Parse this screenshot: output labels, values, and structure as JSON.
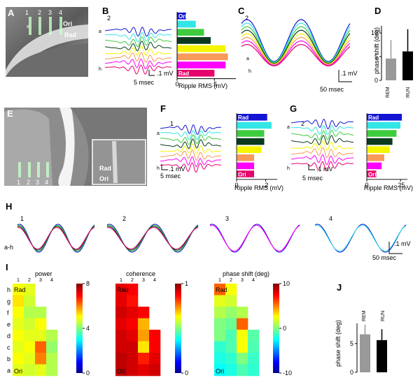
{
  "panel_labels": [
    "A",
    "B",
    "C",
    "D",
    "E",
    "F",
    "G",
    "H",
    "I",
    "J"
  ],
  "colors": {
    "a": "#e5006b",
    "b": "#ff00ff",
    "c": "#f79a5a",
    "d": "#f5f500",
    "e": "#0a3a1e",
    "f": "#3ecc3e",
    "g": "#33e5e5",
    "h": "#1414d4"
  },
  "layers": [
    "a",
    "b",
    "c",
    "d",
    "e",
    "f",
    "g",
    "h"
  ],
  "panel_A": {
    "sites": [
      "1",
      "2",
      "3",
      "4"
    ],
    "label_a": "a",
    "label_h": "h",
    "ori": "Ori",
    "rad": "Rad"
  },
  "panel_B": {
    "site": "2",
    "scale_v": ".1 mV",
    "scale_t": "5 msec",
    "label_a": "a",
    "label_h": "h",
    "top_label": "Ori",
    "bottom_label": "Rad",
    "xlabel": "Ripple RMS (mV)",
    "ticks": [
      "0",
      ".5"
    ]
  },
  "panel_C": {
    "site": "2",
    "scale_v": ".1 mV",
    "scale_t": "50 msec",
    "label_a": "a",
    "label_h": "h"
  },
  "panel_D": {
    "ylabel": "phase shift (deg)",
    "ticks": [
      "0",
      "5",
      "10"
    ],
    "categories": [
      "REM",
      "RUN"
    ]
  },
  "panel_E": {
    "sites": [
      "1",
      "2",
      "3",
      "4"
    ],
    "rad": "Rad",
    "ori": "Ori"
  },
  "panel_F": {
    "site": "1",
    "scale_v": ".1 mV",
    "scale_t": "5 msec",
    "label_a": "a",
    "label_h": "h",
    "top_label": "Rad",
    "bottom_label": "Ori",
    "xlabel": "Ripple RMS (mV)",
    "ticks": [
      "0",
      ".2"
    ]
  },
  "panel_G": {
    "site": "2",
    "scale_v": ".1 mV",
    "scale_t": "5 msec",
    "label_a": "a",
    "label_h": "h",
    "top_label": "Rad",
    "bottom_label": "Ori",
    "xlabel": "Ripple RMS (mV)",
    "ticks": [
      "0",
      ".25"
    ]
  },
  "panel_H": {
    "sites": [
      "1",
      "2",
      "3",
      "4"
    ],
    "row_label": "a-h",
    "scale_v": ".1 mV",
    "scale_t": "50 msec"
  },
  "panel_I": {
    "titles": [
      "power",
      "coherence",
      "phase shift (deg)"
    ],
    "col_labels": [
      "1",
      "2",
      "3",
      "4"
    ],
    "row_labels": [
      "h",
      "g",
      "f",
      "e",
      "d",
      "c",
      "b",
      "a"
    ],
    "rad": "Rad",
    "ori": "Ori",
    "cb_power": [
      "8",
      "4",
      "0"
    ],
    "cb_coh": [
      "1",
      "0"
    ],
    "cb_phase": [
      "10",
      "0",
      "-10"
    ]
  },
  "panel_J": {
    "ylabel": "phase shift (deg)",
    "ticks": [
      "0",
      "5"
    ],
    "categories": [
      "REM",
      "RUN"
    ]
  },
  "chart_data": [
    {
      "type": "bar",
      "title": "",
      "ylabel": "phase shift (deg)",
      "categories": [
        "REM",
        "RUN"
      ],
      "values": [
        4.6,
        6.1
      ],
      "errors": [
        3.9,
        4.7
      ],
      "ylim": [
        0,
        12
      ]
    },
    {
      "type": "bar",
      "title": "",
      "ylabel": "phase shift (deg)",
      "categories": [
        "REM",
        "RUN"
      ],
      "values": [
        6.6,
        5.6
      ],
      "errors": [
        1.7,
        1.9
      ],
      "ylim": [
        0,
        9
      ]
    },
    {
      "type": "bar",
      "xlabel": "Ripple RMS (mV)",
      "categories": [
        "Ori",
        "b",
        "c",
        "d",
        "e",
        "f",
        "g",
        "Rad"
      ],
      "values": [
        0.12,
        0.25,
        0.36,
        0.45,
        0.65,
        0.68,
        0.65,
        0.5
      ]
    },
    {
      "type": "bar",
      "xlabel": "Ripple RMS (mV)",
      "categories": [
        "Rad",
        "g",
        "f",
        "e",
        "d",
        "c",
        "b",
        "Ori"
      ],
      "values": [
        0.21,
        0.24,
        0.19,
        0.19,
        0.17,
        0.12,
        0.12,
        0.12
      ]
    },
    {
      "type": "bar",
      "xlabel": "Ripple RMS (mV)",
      "categories": [
        "Rad",
        "g",
        "f",
        "e",
        "d",
        "c",
        "b",
        "Ori"
      ],
      "values": [
        0.26,
        0.25,
        0.22,
        0.19,
        0.17,
        0.13,
        0.11,
        0.07
      ]
    }
  ]
}
